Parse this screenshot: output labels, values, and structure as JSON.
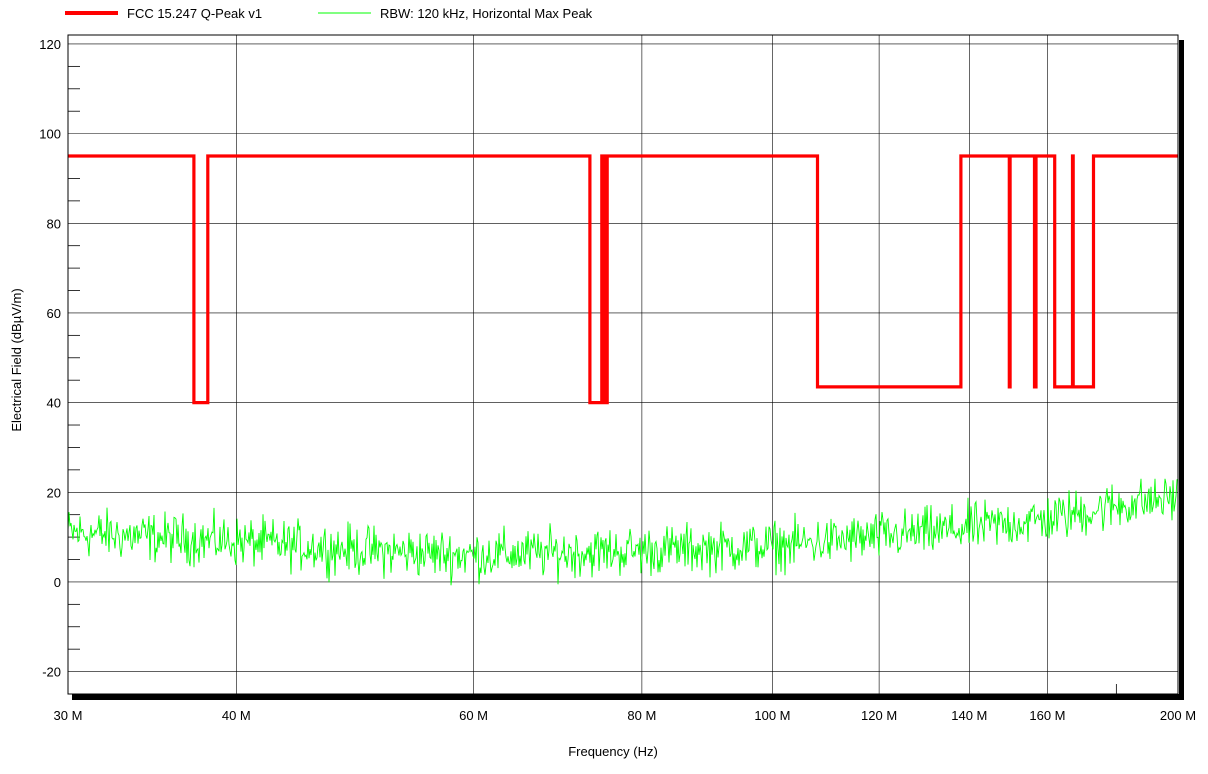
{
  "chart_data": {
    "type": "line",
    "title": "",
    "xlabel": "Frequency (Hz)",
    "ylabel": "Electrical Field (dBµV/m)",
    "x_scale": "log",
    "xlim": [
      30000000,
      200000000
    ],
    "ylim": [
      -25,
      122
    ],
    "x_ticks": [
      {
        "value": 30000000,
        "label": "30 M"
      },
      {
        "value": 40000000,
        "label": "40 M"
      },
      {
        "value": 60000000,
        "label": "60 M"
      },
      {
        "value": 80000000,
        "label": "80 M"
      },
      {
        "value": 100000000,
        "label": "100 M"
      },
      {
        "value": 120000000,
        "label": "120 M"
      },
      {
        "value": 140000000,
        "label": "140 M"
      },
      {
        "value": 160000000,
        "label": "160 M"
      },
      {
        "value": 200000000,
        "label": "200 M"
      }
    ],
    "y_ticks": [
      {
        "value": 120,
        "label": "120"
      },
      {
        "value": 100,
        "label": "100"
      },
      {
        "value": 80,
        "label": "80"
      },
      {
        "value": 60,
        "label": "60"
      },
      {
        "value": 40,
        "label": "40"
      },
      {
        "value": 20,
        "label": "20"
      },
      {
        "value": 0,
        "label": "0"
      },
      {
        "value": -20,
        "label": "-20"
      }
    ],
    "grid": true,
    "legend_position": "top-left",
    "series": [
      {
        "name": "FCC 15.247 Q-Peak v1",
        "color": "#ff0000",
        "kind": "step",
        "points": [
          [
            30000000,
            95
          ],
          [
            37200000,
            95
          ],
          [
            37200000,
            40
          ],
          [
            38100000,
            40
          ],
          [
            38100000,
            95
          ],
          [
            73200000,
            95
          ],
          [
            73200000,
            40
          ],
          [
            74700000,
            40
          ],
          [
            74700000,
            95
          ],
          [
            75000000,
            95
          ],
          [
            75000000,
            40
          ],
          [
            75400000,
            40
          ],
          [
            75400000,
            95
          ],
          [
            108000000,
            95
          ],
          [
            108000000,
            43.5
          ],
          [
            138000000,
            43.5
          ],
          [
            138000000,
            95
          ],
          [
            149900000,
            95
          ],
          [
            149900000,
            43.5
          ],
          [
            150100000,
            43.5
          ],
          [
            150100000,
            95
          ],
          [
            156500000,
            95
          ],
          [
            156500000,
            43.5
          ],
          [
            156900000,
            43.5
          ],
          [
            156900000,
            95
          ],
          [
            162000000,
            95
          ],
          [
            162000000,
            43.5
          ],
          [
            167000000,
            43.5
          ],
          [
            167000000,
            95
          ],
          [
            167200000,
            95
          ],
          [
            167200000,
            43.5
          ],
          [
            173100000,
            43.5
          ],
          [
            173100000,
            95
          ],
          [
            200000000,
            95
          ]
        ]
      },
      {
        "name": "RBW: 120 kHz, Horizontal Max Peak",
        "color": "#00ff00",
        "kind": "noise",
        "trend": [
          [
            30000000,
            11
          ],
          [
            40000000,
            9
          ],
          [
            50000000,
            7
          ],
          [
            60000000,
            6
          ],
          [
            80000000,
            7
          ],
          [
            100000000,
            8
          ],
          [
            120000000,
            10
          ],
          [
            140000000,
            12
          ],
          [
            160000000,
            14
          ],
          [
            180000000,
            17
          ],
          [
            200000000,
            19
          ]
        ],
        "spread": 4.5,
        "min": -4,
        "max": 23
      }
    ]
  }
}
